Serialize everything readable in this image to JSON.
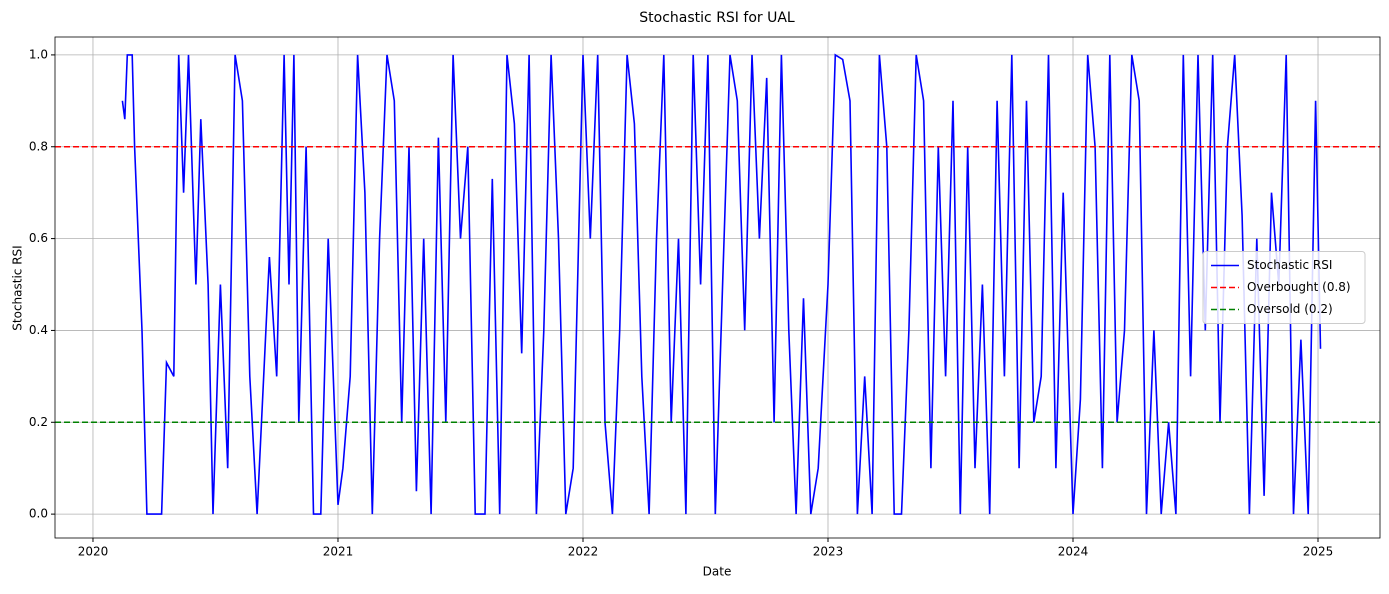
{
  "chart_data": {
    "type": "line",
    "title": "Stochastic RSI for UAL",
    "xlabel": "Date",
    "ylabel": "Stochastic RSI",
    "x": [
      2020.12,
      2020.13,
      2020.14,
      2020.16,
      2020.17,
      2020.2,
      2020.22,
      2020.28,
      2020.3,
      2020.33,
      2020.35,
      2020.37,
      2020.39,
      2020.42,
      2020.44,
      2020.47,
      2020.49,
      2020.52,
      2020.55,
      2020.58,
      2020.61,
      2020.64,
      2020.67,
      2020.72,
      2020.75,
      2020.78,
      2020.8,
      2020.82,
      2020.84,
      2020.87,
      2020.9,
      2020.93,
      2020.96,
      2021.0,
      2021.02,
      2021.05,
      2021.08,
      2021.11,
      2021.14,
      2021.17,
      2021.2,
      2021.23,
      2021.26,
      2021.29,
      2021.32,
      2021.35,
      2021.38,
      2021.41,
      2021.44,
      2021.47,
      2021.5,
      2021.53,
      2021.56,
      2021.6,
      2021.63,
      2021.66,
      2021.69,
      2021.72,
      2021.75,
      2021.78,
      2021.81,
      2021.84,
      2021.87,
      2021.9,
      2021.93,
      2021.96,
      2022.0,
      2022.03,
      2022.06,
      2022.09,
      2022.12,
      2022.15,
      2022.18,
      2022.21,
      2022.24,
      2022.27,
      2022.3,
      2022.33,
      2022.36,
      2022.39,
      2022.42,
      2022.45,
      2022.48,
      2022.51,
      2022.54,
      2022.57,
      2022.6,
      2022.63,
      2022.66,
      2022.69,
      2022.72,
      2022.75,
      2022.78,
      2022.81,
      2022.84,
      2022.87,
      2022.9,
      2022.93,
      2022.96,
      2023.0,
      2023.03,
      2023.06,
      2023.09,
      2023.12,
      2023.15,
      2023.18,
      2023.21,
      2023.24,
      2023.27,
      2023.3,
      2023.33,
      2023.36,
      2023.39,
      2023.42,
      2023.45,
      2023.48,
      2023.51,
      2023.54,
      2023.57,
      2023.6,
      2023.63,
      2023.66,
      2023.69,
      2023.72,
      2023.75,
      2023.78,
      2023.81,
      2023.84,
      2023.87,
      2023.9,
      2023.93,
      2023.96,
      2024.0,
      2024.03,
      2024.06,
      2024.09,
      2024.12,
      2024.15,
      2024.18,
      2024.21,
      2024.24,
      2024.27,
      2024.3,
      2024.33,
      2024.36,
      2024.39,
      2024.42,
      2024.45,
      2024.48,
      2024.51,
      2024.54,
      2024.57,
      2024.6,
      2024.63,
      2024.66,
      2024.69,
      2024.72,
      2024.75,
      2024.78,
      2024.81,
      2024.84,
      2024.87,
      2024.9,
      2024.93,
      2024.96,
      2024.99,
      2025.01
    ],
    "series": [
      {
        "name": "Stochastic RSI",
        "color": "#0000ff",
        "values": [
          0.9,
          0.86,
          1,
          1,
          0.8,
          0.4,
          0,
          0,
          0.33,
          0.3,
          1,
          0.7,
          1,
          0.5,
          0.86,
          0.5,
          0,
          0.5,
          0.1,
          1,
          0.9,
          0.3,
          0,
          0.56,
          0.3,
          1,
          0.5,
          1,
          0.2,
          0.8,
          0,
          0,
          0.6,
          0.02,
          0.1,
          0.3,
          1,
          0.7,
          0,
          0.6,
          1,
          0.9,
          0.2,
          0.8,
          0.05,
          0.6,
          0,
          0.82,
          0.2,
          1,
          0.6,
          0.8,
          0,
          0,
          0.73,
          0,
          1,
          0.85,
          0.35,
          1,
          0,
          0.4,
          1,
          0.6,
          0,
          0.1,
          1,
          0.6,
          1,
          0.2,
          0,
          0.4,
          1,
          0.85,
          0.3,
          0,
          0.6,
          1,
          0.2,
          0.6,
          0,
          1,
          0.5,
          1,
          0,
          0.5,
          1,
          0.9,
          0.4,
          1,
          0.6,
          0.95,
          0.2,
          1,
          0.4,
          0,
          0.47,
          0,
          0.1,
          0.5,
          1,
          0.99,
          0.9,
          0,
          0.3,
          0,
          1,
          0.8,
          0,
          0,
          0.4,
          1,
          0.9,
          0.1,
          0.8,
          0.3,
          0.9,
          0,
          0.8,
          0.1,
          0.5,
          0,
          0.9,
          0.3,
          1,
          0.1,
          0.9,
          0.2,
          0.3,
          1,
          0.1,
          0.7,
          0,
          0.25,
          1,
          0.8,
          0.1,
          1,
          0.2,
          0.4,
          1,
          0.9,
          0,
          0.4,
          0,
          0.2,
          0,
          1,
          0.3,
          1,
          0.4,
          1,
          0.2,
          0.8,
          1,
          0.65,
          0,
          0.6,
          0.04,
          0.7,
          0.5,
          1,
          0,
          0.38,
          0,
          0.9,
          0.36
        ]
      }
    ],
    "hlines": [
      {
        "name": "Overbought (0.8)",
        "value": 0.8,
        "color": "#ff0000"
      },
      {
        "name": "Oversold (0.2)",
        "value": 0.2,
        "color": "#008000"
      }
    ],
    "xlim": [
      2019.845,
      2025.253
    ],
    "xticks": [
      2020,
      2021,
      2022,
      2023,
      2024,
      2025
    ],
    "ylim": [
      -0.052,
      1.039
    ],
    "yticks": [
      {
        "value": 0,
        "label": "0.0"
      },
      0.2,
      0.4,
      0.6,
      0.8,
      {
        "value": 1,
        "label": "1.0"
      }
    ],
    "grid": true,
    "legend": "center right"
  }
}
